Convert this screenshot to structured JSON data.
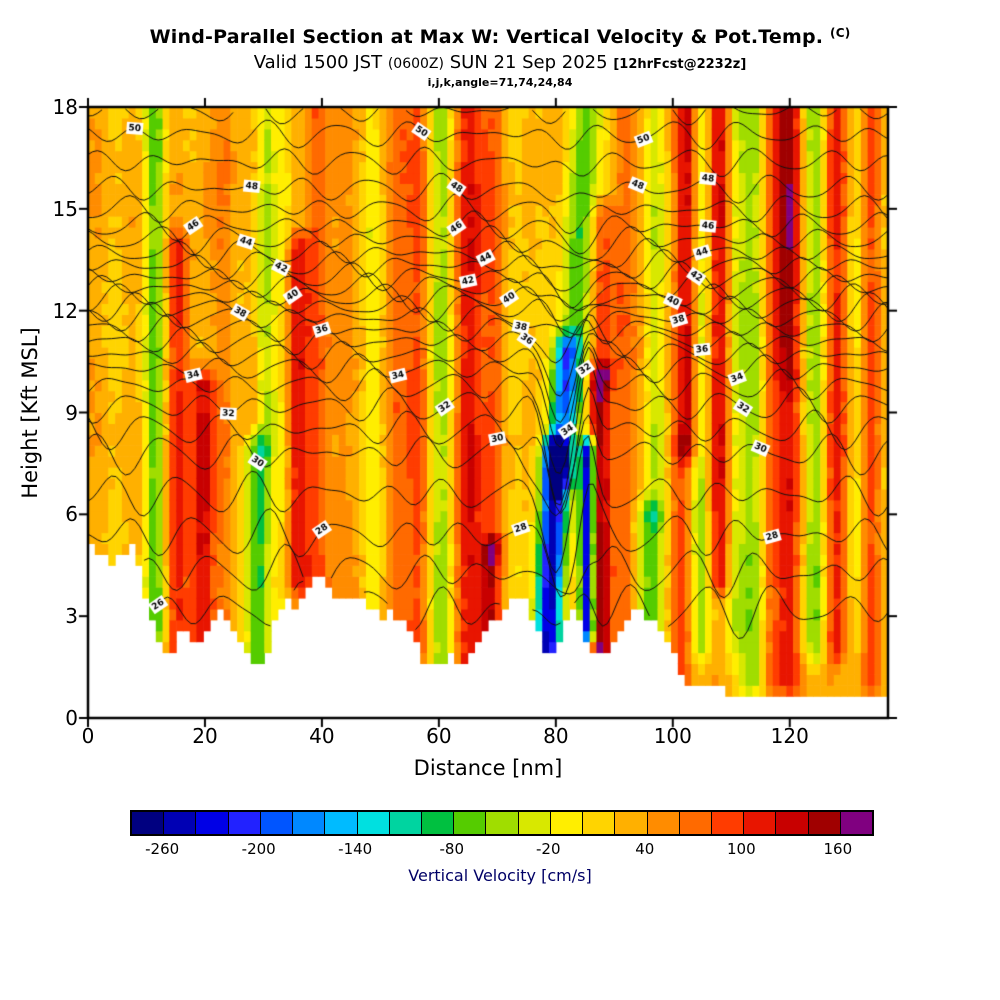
{
  "header": {
    "title": "Wind-Parallel Section at Max W: Vertical Velocity & Pot.Temp.",
    "title_suffix": "(C)",
    "valid_line": {
      "prefix": "Valid 1500 JST",
      "zulu": "(0600Z)",
      "date": "SUN 21 Sep 2025",
      "fcst": "[12hrFcst@2232z]"
    },
    "model_info": "i,j,k,angle=71,74,24,84"
  },
  "axes": {
    "x": {
      "label": "Distance [nm]",
      "ticks": [
        0,
        20,
        40,
        60,
        80,
        100,
        120
      ],
      "range": [
        0,
        136.8
      ],
      "units": "nm"
    },
    "y": {
      "label": "Height [Kft MSL]",
      "ticks": [
        0,
        3,
        6,
        9,
        12,
        15,
        18
      ],
      "range": [
        0,
        18
      ],
      "units": "Kft MSL"
    }
  },
  "colorbar": {
    "label": "Vertical Velocity [cm/s]",
    "tick_labels": [
      -260,
      -200,
      -140,
      -80,
      -20,
      40,
      100,
      160
    ],
    "levels": {
      "min": -280,
      "max": 180,
      "step": 20
    },
    "colors": [
      "#000080",
      "#0000b4",
      "#0000e6",
      "#2222ff",
      "#0055ff",
      "#0088ff",
      "#00bbff",
      "#00e0e0",
      "#00d4a0",
      "#00c040",
      "#55cc00",
      "#a0dd00",
      "#d8e800",
      "#ffee00",
      "#ffd400",
      "#ffb000",
      "#ff8c00",
      "#ff6a00",
      "#ff3c00",
      "#e81500",
      "#c80000",
      "#a00000",
      "#800080"
    ]
  },
  "chart_data": {
    "type": "heatmap",
    "subtype": "filled-contour-vertical-cross-section",
    "title": "Wind-Parallel Section at Max W: Vertical Velocity & Pot.Temp. (C)",
    "x_range": [
      0,
      136.8
    ],
    "y_range": [
      0,
      18
    ],
    "x_units": "nm",
    "y_units": "kft MSL",
    "shading": {
      "quantity": "Vertical Velocity",
      "units": "cm/s",
      "min": -280,
      "max": 180,
      "interval": 20
    },
    "contours": {
      "quantity": "Potential Temperature",
      "units": "C",
      "min": 26,
      "max": 51,
      "interval": 1
    },
    "background_value": 27,
    "bands": [
      {
        "x": 11.5,
        "s": 1.2,
        "a": -90,
        "y": [
          1,
          18
        ]
      },
      {
        "x": 15.5,
        "s": 1.3,
        "a": 70,
        "y": [
          1,
          14
        ]
      },
      {
        "x": 19.5,
        "s": 1.5,
        "a": 95,
        "y": [
          1,
          10
        ]
      },
      {
        "x": 23.5,
        "s": 1.1,
        "a": 40,
        "y": [
          1,
          18
        ]
      },
      {
        "x": 29,
        "s": 1.5,
        "a": -110,
        "y": [
          1,
          8
        ]
      },
      {
        "x": 30.5,
        "s": 1.2,
        "a": -60,
        "y": [
          8,
          18
        ]
      },
      {
        "x": 33.5,
        "s": 1.0,
        "a": -45,
        "y": [
          3,
          18
        ]
      },
      {
        "x": 36,
        "s": 1.5,
        "a": 85,
        "y": [
          4,
          14
        ]
      },
      {
        "x": 39,
        "s": 1.2,
        "a": 50,
        "y": [
          1,
          18
        ]
      },
      {
        "x": 44,
        "s": 1.5,
        "a": 35,
        "y": [
          1,
          18
        ]
      },
      {
        "x": 48.5,
        "s": 1.2,
        "a": -45,
        "y": [
          2,
          18
        ]
      },
      {
        "x": 52.5,
        "s": 1.4,
        "a": 40,
        "y": [
          1,
          18
        ]
      },
      {
        "x": 56.5,
        "s": 1.3,
        "a": 60,
        "y": [
          2,
          18
        ]
      },
      {
        "x": 60.5,
        "s": 1.4,
        "a": -90,
        "y": [
          1,
          18
        ]
      },
      {
        "x": 65,
        "s": 1.8,
        "a": 100,
        "y": [
          1,
          18
        ]
      },
      {
        "x": 69,
        "s": 1.3,
        "a": 110,
        "y": [
          1,
          5
        ]
      },
      {
        "x": 69.5,
        "s": 1.2,
        "a": 55,
        "y": [
          5,
          18
        ]
      },
      {
        "x": 73.5,
        "s": 1.2,
        "a": -30,
        "y": [
          2,
          18
        ]
      },
      {
        "x": 78.5,
        "s": 1.6,
        "a": -280,
        "y": [
          1.5,
          8
        ],
        "tilt": 0.25
      },
      {
        "x": 80.5,
        "s": 1.6,
        "a": -160,
        "y": [
          7,
          11
        ],
        "tilt": 0.3
      },
      {
        "x": 82.5,
        "s": 2.2,
        "a": -90,
        "y": [
          9,
          18
        ],
        "tilt": 0.35
      },
      {
        "x": 85.5,
        "s": 0.9,
        "a": -300,
        "y": [
          2.5,
          8
        ]
      },
      {
        "x": 87.5,
        "s": 1.4,
        "a": 130,
        "y": [
          1.5,
          10
        ]
      },
      {
        "x": 88,
        "s": 1.5,
        "a": 70,
        "y": [
          10,
          15
        ]
      },
      {
        "x": 91.5,
        "s": 1.2,
        "a": 45,
        "y": [
          1,
          18
        ]
      },
      {
        "x": 96,
        "s": 1.8,
        "a": -100,
        "y": [
          2,
          6
        ]
      },
      {
        "x": 97,
        "s": 1.3,
        "a": -55,
        "y": [
          6,
          18
        ]
      },
      {
        "x": 101.5,
        "s": 1.3,
        "a": 60,
        "y": [
          1,
          8
        ]
      },
      {
        "x": 102.5,
        "s": 1.4,
        "a": 110,
        "y": [
          8,
          18
        ]
      },
      {
        "x": 105,
        "s": 1.2,
        "a": -70,
        "y": [
          2,
          18
        ]
      },
      {
        "x": 108,
        "s": 1.4,
        "a": 95,
        "y": [
          4,
          18
        ]
      },
      {
        "x": 110.5,
        "s": 1.0,
        "a": -40,
        "y": [
          2,
          18
        ]
      },
      {
        "x": 113.5,
        "s": 1.6,
        "a": -95,
        "y": [
          1,
          18
        ]
      },
      {
        "x": 116.5,
        "s": 1.0,
        "a": 40,
        "y": [
          1,
          18
        ]
      },
      {
        "x": 119.5,
        "s": 1.8,
        "a": 85,
        "y": [
          1,
          18
        ]
      },
      {
        "x": 119.5,
        "s": 1.5,
        "a": 45,
        "y": [
          10,
          18
        ]
      },
      {
        "x": 124.5,
        "s": 1.4,
        "a": -80,
        "y": [
          2,
          18
        ]
      },
      {
        "x": 128,
        "s": 1.5,
        "a": 75,
        "y": [
          2,
          18
        ]
      },
      {
        "x": 131.5,
        "s": 1.0,
        "a": -40,
        "y": [
          2,
          18
        ]
      },
      {
        "x": 134,
        "s": 1.2,
        "a": 50,
        "y": [
          1,
          18
        ]
      }
    ],
    "terrain_profile": [
      [
        0,
        5.2
      ],
      [
        2,
        4.8
      ],
      [
        4,
        4.5
      ],
      [
        6,
        4.9
      ],
      [
        8,
        5.1
      ],
      [
        9,
        4.2
      ],
      [
        10,
        3.4
      ],
      [
        12,
        2.4
      ],
      [
        14,
        1.9
      ],
      [
        15,
        2.2
      ],
      [
        16,
        2.7
      ],
      [
        18,
        2.1
      ],
      [
        20,
        2.6
      ],
      [
        22,
        3.2
      ],
      [
        24,
        3.0
      ],
      [
        26,
        2.3
      ],
      [
        28,
        1.7
      ],
      [
        30,
        1.4
      ],
      [
        31,
        2.2
      ],
      [
        32,
        2.9
      ],
      [
        34,
        3.6
      ],
      [
        36,
        3.2
      ],
      [
        38,
        4.0
      ],
      [
        40,
        4.2
      ],
      [
        42,
        3.7
      ],
      [
        44,
        3.4
      ],
      [
        46,
        3.7
      ],
      [
        48,
        3.3
      ],
      [
        50,
        3.0
      ],
      [
        52,
        3.2
      ],
      [
        54,
        2.8
      ],
      [
        56,
        2.3
      ],
      [
        57,
        1.8
      ],
      [
        58,
        1.6
      ],
      [
        60,
        1.5
      ],
      [
        62,
        1.9
      ],
      [
        64,
        1.6
      ],
      [
        66,
        2.1
      ],
      [
        68,
        2.5
      ],
      [
        70,
        3.0
      ],
      [
        72,
        3.5
      ],
      [
        74,
        3.7
      ],
      [
        75,
        3.3
      ],
      [
        76,
        2.8
      ],
      [
        78,
        2.1
      ],
      [
        80,
        1.9
      ],
      [
        81,
        2.4
      ],
      [
        82,
        3.0
      ],
      [
        83,
        3.3
      ],
      [
        84,
        2.9
      ],
      [
        85,
        2.4
      ],
      [
        86,
        2.0
      ],
      [
        88,
        1.7
      ],
      [
        90,
        2.3
      ],
      [
        92,
        2.9
      ],
      [
        94,
        3.3
      ],
      [
        96,
        3.0
      ],
      [
        98,
        2.6
      ],
      [
        100,
        2.1
      ],
      [
        101,
        1.5
      ],
      [
        102,
        1.2
      ],
      [
        104,
        0.9
      ],
      [
        106,
        0.8
      ],
      [
        108,
        0.9
      ],
      [
        110,
        0.7
      ],
      [
        112,
        0.8
      ],
      [
        114,
        0.6
      ],
      [
        116,
        0.7
      ],
      [
        118,
        0.8
      ],
      [
        120,
        0.6
      ],
      [
        122,
        0.7
      ],
      [
        124,
        0.5
      ],
      [
        126,
        0.6
      ],
      [
        128,
        0.7
      ],
      [
        130,
        0.6
      ],
      [
        132,
        0.5
      ],
      [
        134,
        0.6
      ],
      [
        136.8,
        0.5
      ]
    ],
    "isentropes": {
      "height_anchors": [
        [
          26,
          3.2
        ],
        [
          27,
          4.3
        ],
        [
          28,
          5.4
        ],
        [
          29,
          6.6
        ],
        [
          30,
          7.8
        ],
        [
          31,
          8.5
        ],
        [
          32,
          9.2
        ],
        [
          33,
          9.8
        ],
        [
          34,
          10.3
        ],
        [
          35,
          10.7
        ],
        [
          36,
          11.1
        ],
        [
          37,
          11.45
        ],
        [
          38,
          11.8
        ],
        [
          39,
          12.1
        ],
        [
          40,
          12.4
        ],
        [
          41,
          12.7
        ],
        [
          42,
          13.0
        ],
        [
          43,
          13.35
        ],
        [
          44,
          13.7
        ],
        [
          45,
          14.1
        ],
        [
          46,
          14.5
        ],
        [
          47,
          15.0
        ],
        [
          48,
          15.6
        ],
        [
          49,
          16.4
        ],
        [
          50,
          17.2
        ],
        [
          51,
          17.9
        ]
      ],
      "labels": [
        {
          "v": 50,
          "x": 8
        },
        {
          "v": 50,
          "x": 57
        },
        {
          "v": 50,
          "x": 95
        },
        {
          "v": 48,
          "x": 28
        },
        {
          "v": 48,
          "x": 63
        },
        {
          "v": 48,
          "x": 94
        },
        {
          "v": 48,
          "x": 106
        },
        {
          "v": 46,
          "x": 18
        },
        {
          "v": 46,
          "x": 63
        },
        {
          "v": 46,
          "x": 106
        },
        {
          "v": 44,
          "x": 27
        },
        {
          "v": 44,
          "x": 68
        },
        {
          "v": 44,
          "x": 105
        },
        {
          "v": 42,
          "x": 33
        },
        {
          "v": 42,
          "x": 65
        },
        {
          "v": 42,
          "x": 104
        },
        {
          "v": 40,
          "x": 35
        },
        {
          "v": 40,
          "x": 72
        },
        {
          "v": 40,
          "x": 100
        },
        {
          "v": 38,
          "x": 26
        },
        {
          "v": 38,
          "x": 74
        },
        {
          "v": 38,
          "x": 101
        },
        {
          "v": 36,
          "x": 40
        },
        {
          "v": 36,
          "x": 75
        },
        {
          "v": 36,
          "x": 105
        },
        {
          "v": 34,
          "x": 18
        },
        {
          "v": 34,
          "x": 53
        },
        {
          "v": 34,
          "x": 82
        },
        {
          "v": 34,
          "x": 111
        },
        {
          "v": 32,
          "x": 24
        },
        {
          "v": 32,
          "x": 61
        },
        {
          "v": 32,
          "x": 85
        },
        {
          "v": 32,
          "x": 112
        },
        {
          "v": 30,
          "x": 29
        },
        {
          "v": 30,
          "x": 70
        },
        {
          "v": 30,
          "x": 115
        },
        {
          "v": 28,
          "x": 40
        },
        {
          "v": 28,
          "x": 74
        },
        {
          "v": 28,
          "x": 117
        },
        {
          "v": 26,
          "x": 12
        }
      ]
    }
  }
}
